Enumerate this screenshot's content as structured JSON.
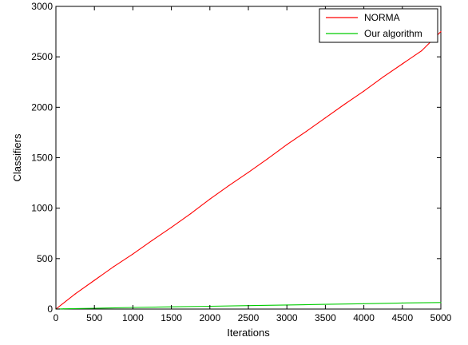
{
  "chart_data": {
    "type": "line",
    "title": "",
    "xlabel": "Iterations",
    "ylabel": "Classifiers",
    "xlim": [
      0,
      5000
    ],
    "ylim": [
      0,
      3000
    ],
    "xticks": [
      0,
      500,
      1000,
      1500,
      2000,
      2500,
      3000,
      3500,
      4000,
      4500,
      5000
    ],
    "yticks": [
      0,
      500,
      1000,
      1500,
      2000,
      2500,
      3000
    ],
    "xtick_labels": [
      "0",
      "500",
      "1000",
      "1500",
      "2000",
      "2500",
      "3000",
      "3500",
      "4000",
      "4500",
      "5000"
    ],
    "ytick_labels": [
      "0",
      "500",
      "1000",
      "1500",
      "2000",
      "2500",
      "3000"
    ],
    "grid": false,
    "legend_position": "top-right",
    "series": [
      {
        "name": "NORMA",
        "color": "#ff0000",
        "x": [
          0,
          250,
          500,
          750,
          1000,
          1250,
          1500,
          1750,
          2000,
          2250,
          2500,
          2750,
          3000,
          3250,
          3500,
          3750,
          4000,
          4250,
          4500,
          4750,
          5000
        ],
        "values": [
          0,
          150,
          285,
          420,
          545,
          680,
          810,
          945,
          1090,
          1225,
          1355,
          1490,
          1630,
          1760,
          1895,
          2030,
          2160,
          2300,
          2430,
          2560,
          2750
        ]
      },
      {
        "name": "Our algorithm",
        "color": "#00cc00",
        "x": [
          0,
          100,
          500,
          1000,
          1500,
          2000,
          2500,
          3000,
          3500,
          4000,
          4500,
          5000
        ],
        "values": [
          0,
          2,
          8,
          16,
          22,
          28,
          34,
          40,
          47,
          53,
          60,
          65
        ]
      }
    ]
  }
}
